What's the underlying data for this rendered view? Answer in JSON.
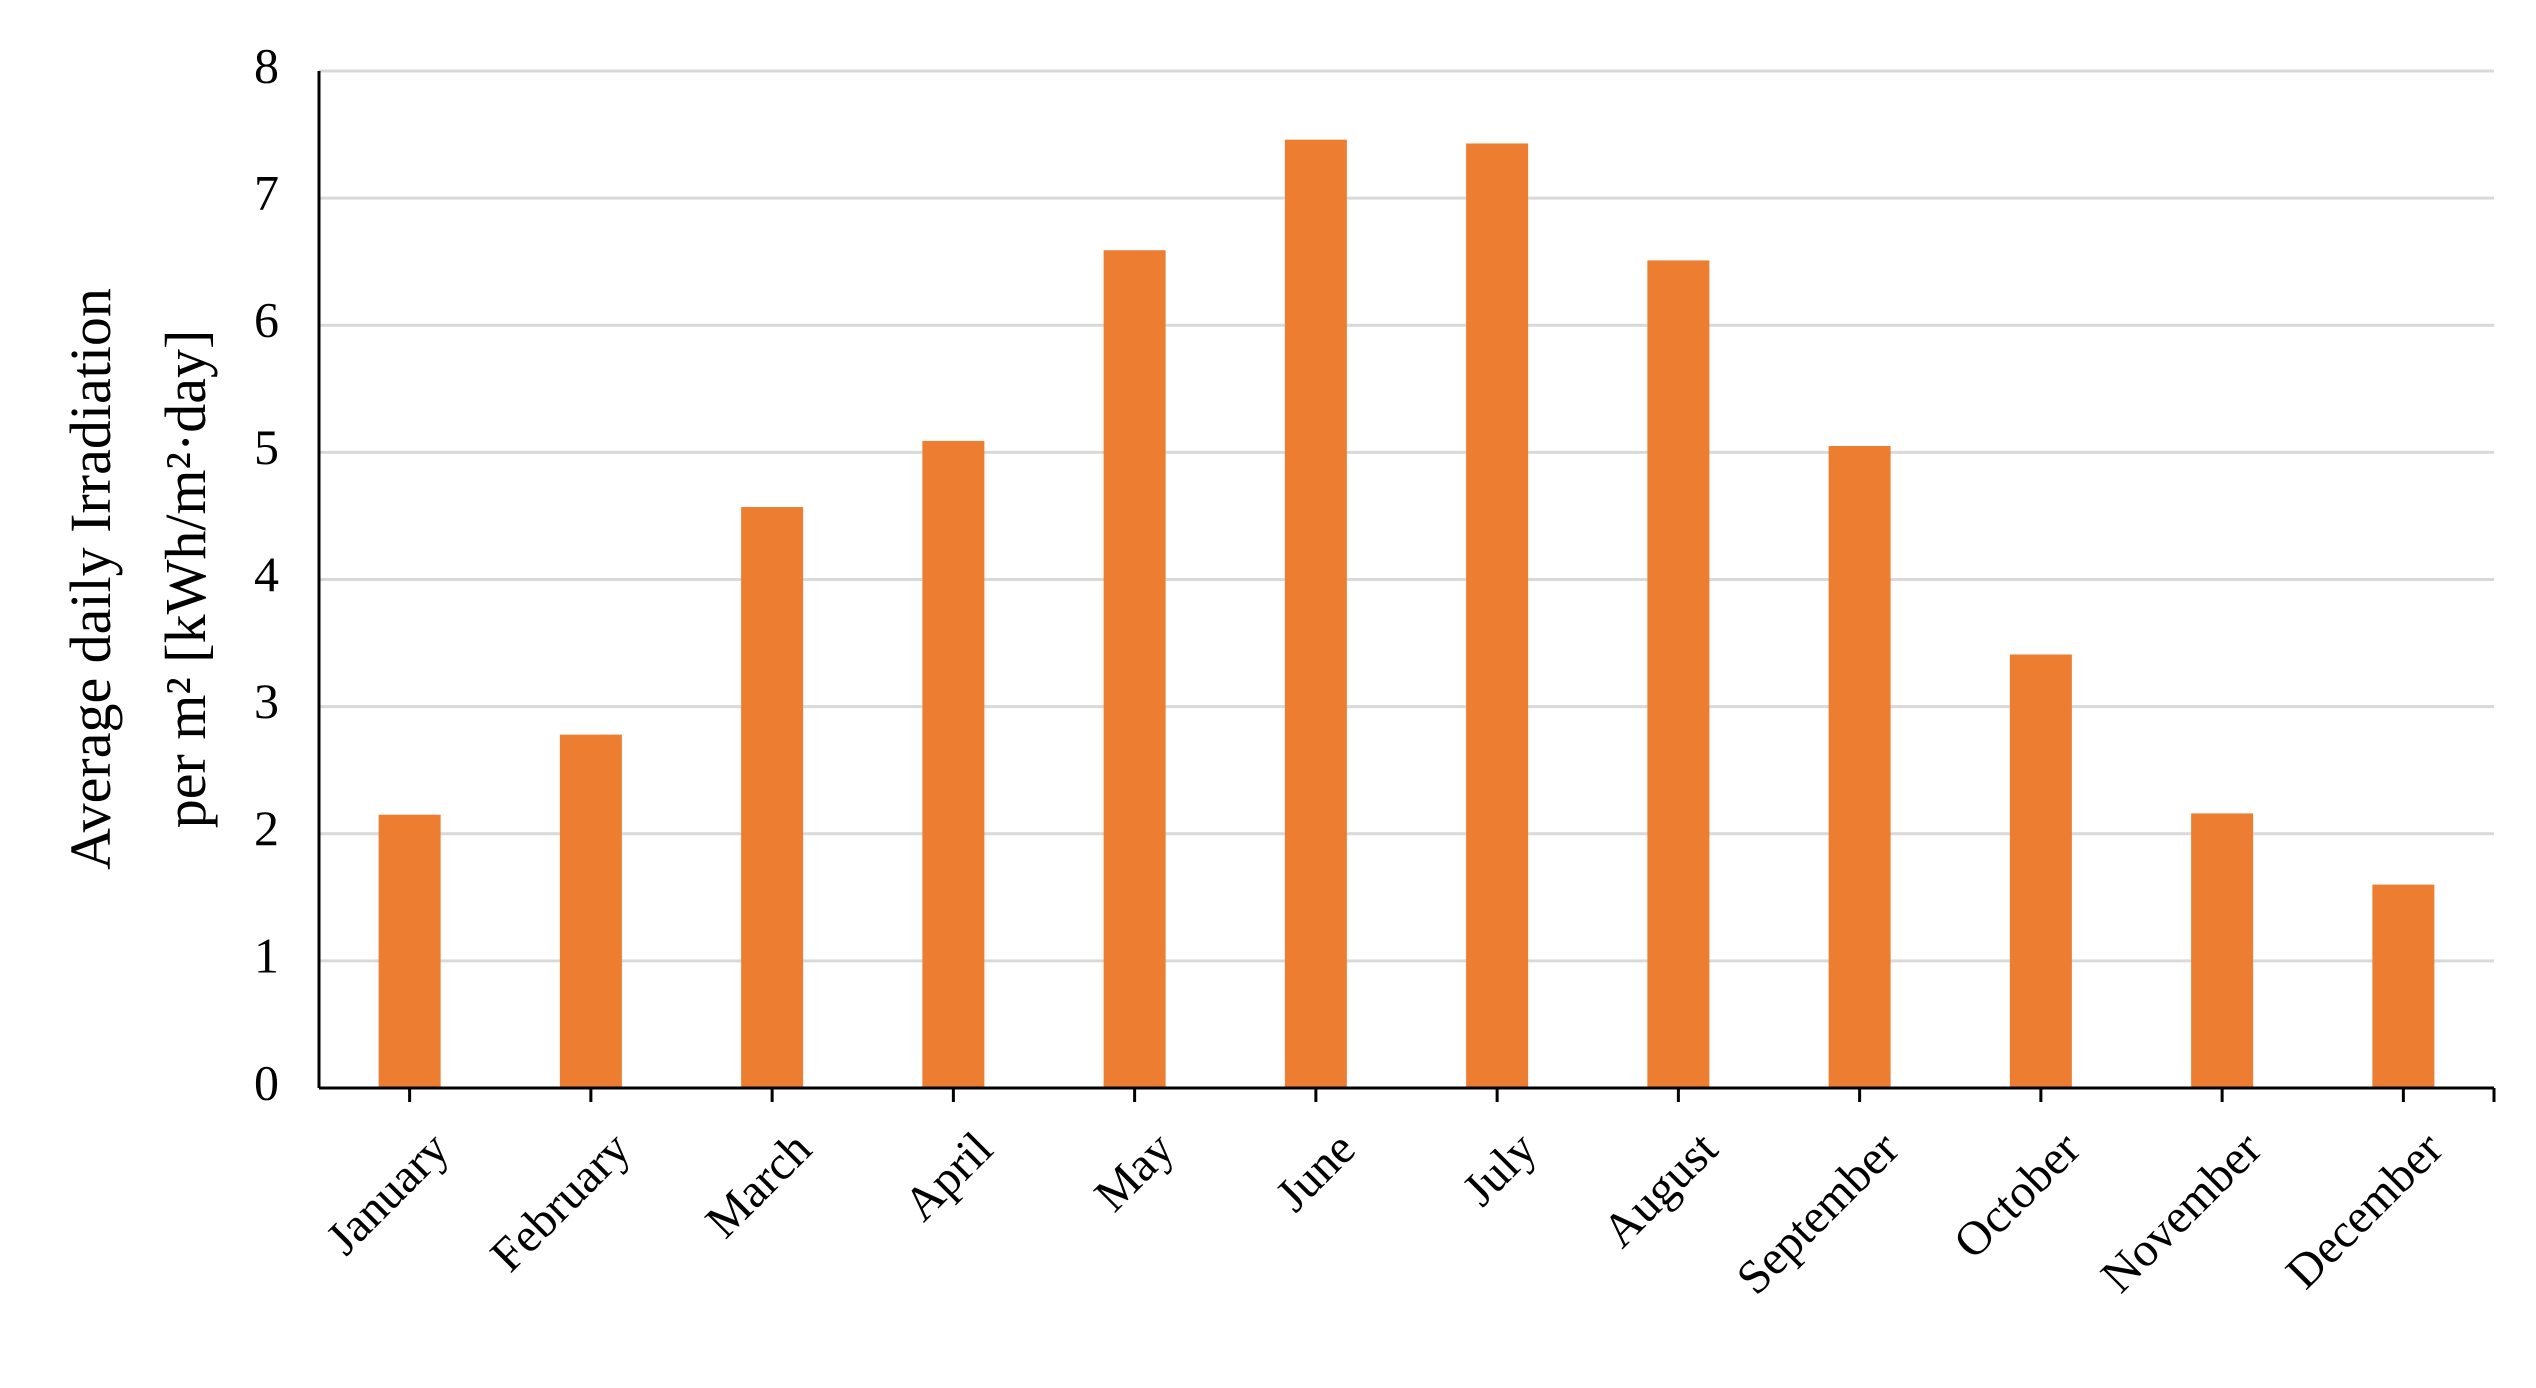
{
  "chart_data": {
    "type": "bar",
    "y_label": [
      "Average daily Irradiation",
      "per m² [kWh/m²·day]"
    ],
    "categories": [
      "January",
      "February",
      "March",
      "April",
      "May",
      "June",
      "July",
      "August",
      "September",
      "October",
      "November",
      "December"
    ],
    "values": [
      2.15,
      2.78,
      4.57,
      5.09,
      6.59,
      7.46,
      7.43,
      6.51,
      5.05,
      3.41,
      2.16,
      1.6
    ],
    "color": "#ed7d31",
    "ylim": [
      0,
      8
    ],
    "yticks": [
      0,
      1,
      2,
      3,
      4,
      5,
      6,
      7,
      8
    ],
    "grid": true
  }
}
